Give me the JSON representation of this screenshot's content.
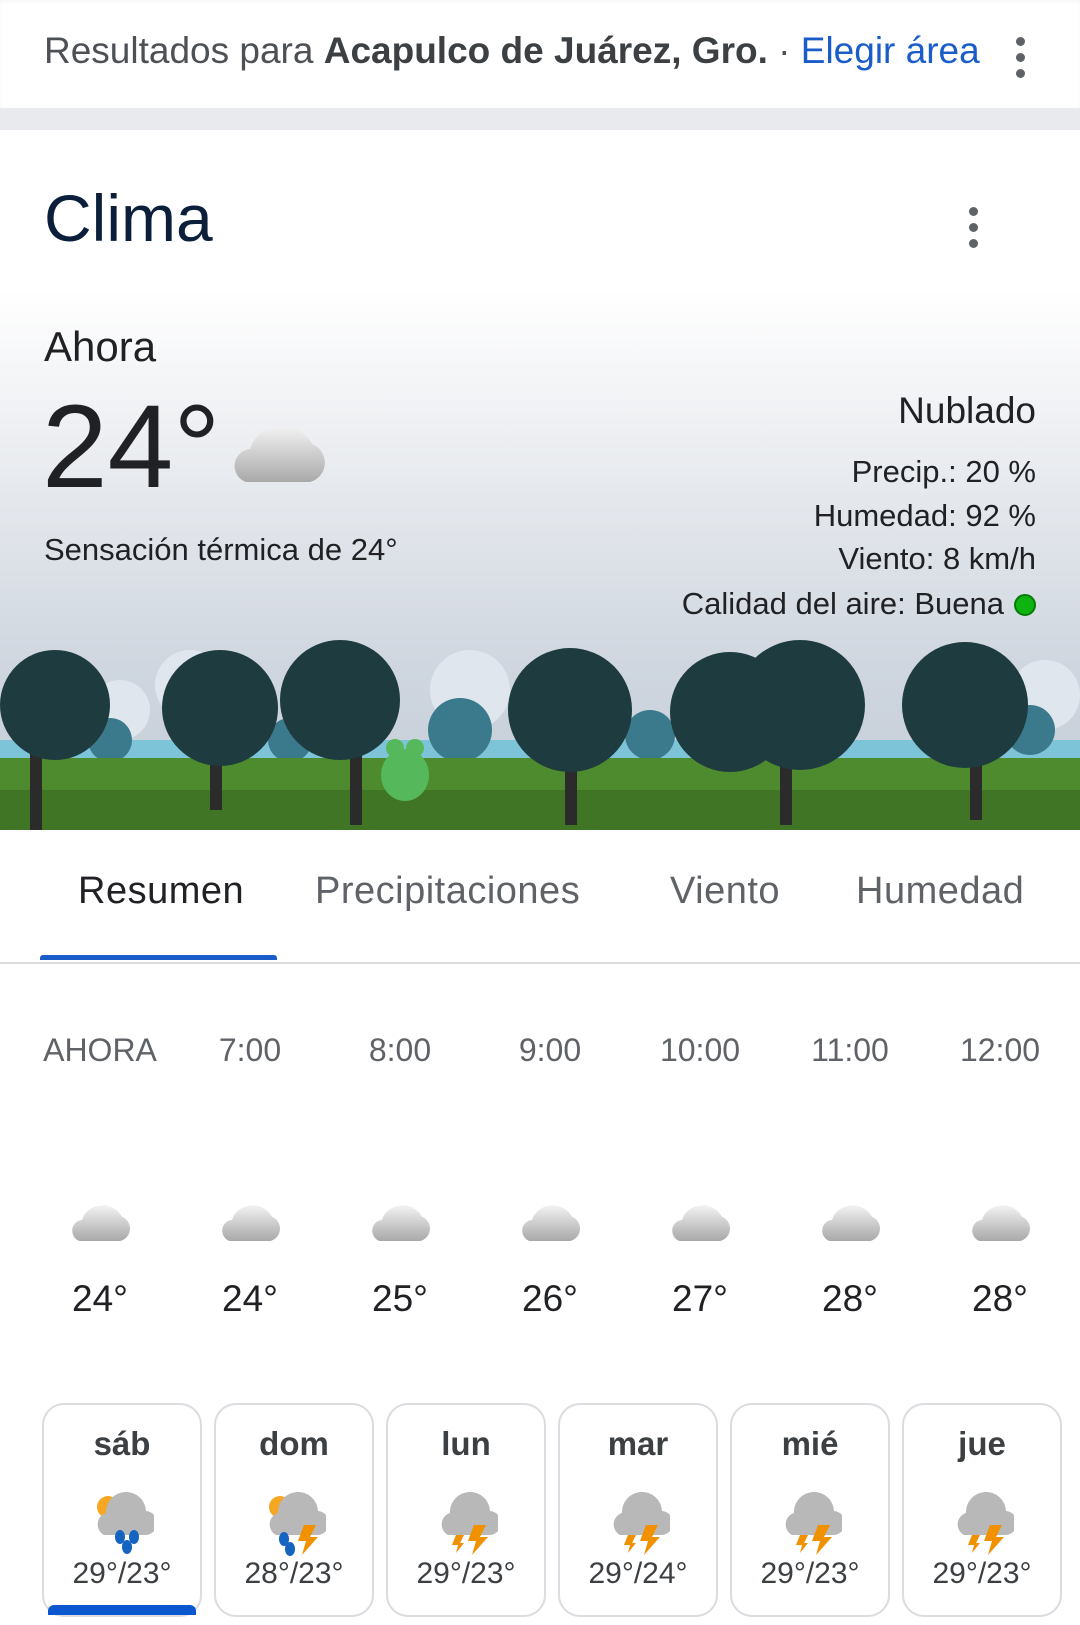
{
  "header": {
    "prefix": "Resultados para ",
    "location": "Acapulco de Juárez, Gro.",
    "separator": " · ",
    "choose_area": "Elegir área",
    "more_icon": "vertical-dots-icon"
  },
  "card": {
    "title": "Clima",
    "more_icon": "vertical-dots-icon"
  },
  "current": {
    "label": "Ahora",
    "temp": "24°",
    "icon": "cloud-icon",
    "feels_like": "Sensación térmica de 24°",
    "condition": "Nublado",
    "precip": "Precip.: 20 %",
    "humidity": "Humedad: 92 %",
    "wind": "Viento: 8 km/h",
    "air_quality": "Calidad del aire: Buena",
    "air_quality_color": "#0fb30f"
  },
  "tabs": [
    {
      "label": "Resumen",
      "active": true
    },
    {
      "label": "Precipitaciones"
    },
    {
      "label": "Viento"
    },
    {
      "label": "Humedad"
    }
  ],
  "hourly": [
    {
      "time": "AHORA",
      "temp": "24°",
      "icon": "cloud-icon"
    },
    {
      "time": "7:00",
      "temp": "24°",
      "icon": "cloud-icon"
    },
    {
      "time": "8:00",
      "temp": "25°",
      "icon": "cloud-icon"
    },
    {
      "time": "9:00",
      "temp": "26°",
      "icon": "cloud-icon"
    },
    {
      "time": "10:00",
      "temp": "27°",
      "icon": "cloud-icon"
    },
    {
      "time": "11:00",
      "temp": "28°",
      "icon": "cloud-icon"
    },
    {
      "time": "12:00",
      "temp": "28°",
      "icon": "cloud-icon"
    }
  ],
  "daily": [
    {
      "day": "sáb",
      "temps": "29°/23°",
      "icon": "sun-cloud-rain-icon",
      "selected": true
    },
    {
      "day": "dom",
      "temps": "28°/23°",
      "icon": "sun-cloud-rain-storm-icon"
    },
    {
      "day": "lun",
      "temps": "29°/23°",
      "icon": "thunderstorm-icon"
    },
    {
      "day": "mar",
      "temps": "29°/24°",
      "icon": "thunderstorm-icon"
    },
    {
      "day": "mié",
      "temps": "29°/23°",
      "icon": "thunderstorm-icon"
    },
    {
      "day": "jue",
      "temps": "29°/23°",
      "icon": "thunderstorm-icon"
    }
  ],
  "colors": {
    "accent": "#1a5dc9",
    "selected_bar": "#0b57d0"
  }
}
